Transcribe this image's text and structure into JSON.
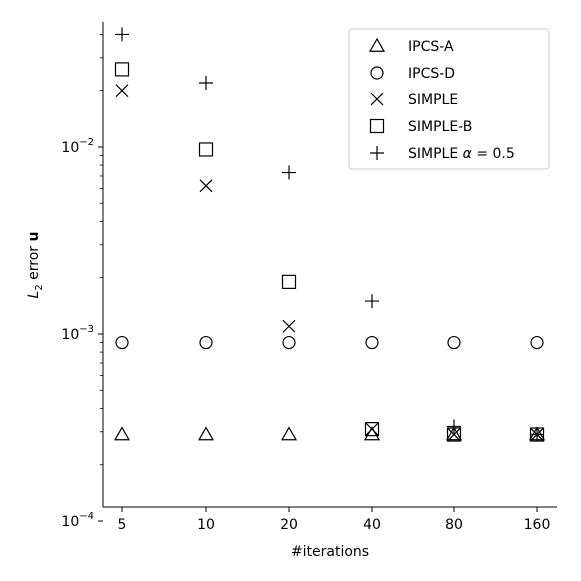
{
  "chart_data": {
    "type": "scatter",
    "title": "",
    "xlabel": "#iterations",
    "ylabel_parts": {
      "l": "L",
      "sub": "2",
      "rest": " error ",
      "bold": "u"
    },
    "x_categories": [
      "5",
      "10",
      "20",
      "40",
      "80",
      "160"
    ],
    "yscale": "log",
    "ylim": [
      0.0001,
      0.05
    ],
    "y_ticks": [
      {
        "value": 0.0001,
        "base": "10",
        "exp": "−4"
      },
      {
        "value": 0.001,
        "base": "10",
        "exp": "−3"
      },
      {
        "value": 0.01,
        "base": "10",
        "exp": "−2"
      }
    ],
    "grid": false,
    "legend_position": "top-right",
    "series": [
      {
        "name": "IPCS-A",
        "marker": "triangle",
        "values": [
          0.00029,
          0.00029,
          0.00029,
          0.00029,
          0.00029,
          0.00029
        ]
      },
      {
        "name": "IPCS-D",
        "marker": "circle",
        "values": [
          0.0009,
          0.0009,
          0.0009,
          0.0009,
          0.0009,
          0.0009
        ]
      },
      {
        "name": "SIMPLE",
        "marker": "x",
        "values": [
          0.02,
          0.0062,
          0.0011,
          0.00031,
          0.00029,
          0.00029
        ]
      },
      {
        "name": "SIMPLE-B",
        "marker": "square",
        "values": [
          0.026,
          0.0097,
          0.0019,
          0.00031,
          0.00029,
          0.00029
        ]
      },
      {
        "name": "SIMPLE α = 0.5",
        "name_parts": {
          "pre": "SIMPLE ",
          "alpha": "α",
          "post": " = 0.5"
        },
        "marker": "plus",
        "values": [
          0.04,
          0.022,
          0.0073,
          0.0015,
          0.00032,
          0.00029
        ]
      }
    ]
  }
}
